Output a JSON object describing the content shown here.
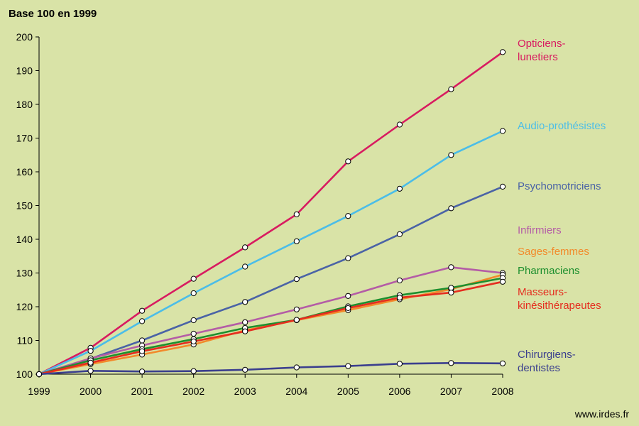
{
  "chart_data": {
    "type": "line",
    "title": "Base 100 en 1999",
    "source": "www.irdes.fr",
    "x": [
      1999,
      2000,
      2001,
      2002,
      2003,
      2004,
      2005,
      2006,
      2007,
      2008
    ],
    "x_tick_labels": [
      "1999",
      "2000",
      "2001",
      "2002",
      "2003",
      "2004",
      "2005",
      "2006",
      "2007",
      "2008"
    ],
    "ylim": [
      100,
      200
    ],
    "y_ticks": [
      100,
      110,
      120,
      130,
      140,
      150,
      160,
      170,
      180,
      190,
      200
    ],
    "y_tick_labels": [
      "100",
      "110",
      "120",
      "130",
      "140",
      "150",
      "160",
      "170",
      "180",
      "190",
      "200"
    ],
    "grid": false,
    "legend": "right, labels at line ends",
    "series": [
      {
        "name_lines": [
          "Opticiens-",
          "lunetiers"
        ],
        "color": "#d81b60",
        "values": [
          100,
          107.8,
          118.8,
          128.3,
          137.6,
          147.4,
          163.1,
          174.0,
          184.5,
          195.5
        ]
      },
      {
        "name_lines": [
          "Audio-prothésistes"
        ],
        "color": "#4bbde8",
        "values": [
          100,
          106.9,
          115.7,
          124.0,
          131.9,
          139.4,
          146.9,
          155.0,
          165.0,
          172.1
        ]
      },
      {
        "name_lines": [
          "Psychomotriciens"
        ],
        "color": "#4a63a6",
        "values": [
          100,
          104.6,
          110.0,
          116.0,
          121.4,
          128.2,
          134.4,
          141.5,
          149.2,
          155.6
        ]
      },
      {
        "name_lines": [
          "Infirmiers"
        ],
        "color": "#b45ca6",
        "values": [
          100,
          104.7,
          108.5,
          112.0,
          115.4,
          119.2,
          123.2,
          127.8,
          131.7,
          130.0
        ]
      },
      {
        "name_lines": [
          "Sages-femmes"
        ],
        "color": "#f28a2b",
        "values": [
          100,
          103.0,
          105.8,
          108.8,
          113.0,
          116.0,
          119.0,
          122.2,
          125.2,
          129.5
        ]
      },
      {
        "name_lines": [
          "Pharmaciens"
        ],
        "color": "#1d8f2e",
        "values": [
          100,
          104.1,
          107.4,
          110.4,
          113.7,
          116.1,
          120.1,
          123.4,
          125.6,
          128.5
        ]
      },
      {
        "name_lines": [
          "Masseurs-",
          "kinésithérapeutes"
        ],
        "color": "#e52d1f",
        "values": [
          100,
          103.4,
          106.8,
          109.7,
          112.7,
          116.1,
          119.6,
          122.7,
          124.2,
          127.4
        ]
      },
      {
        "name_lines": [
          "Chirurgiens-",
          "dentistes"
        ],
        "color": "#3b3f8e",
        "values": [
          100,
          101.0,
          100.8,
          100.9,
          101.3,
          102.0,
          102.4,
          103.1,
          103.3,
          103.2
        ]
      }
    ]
  }
}
